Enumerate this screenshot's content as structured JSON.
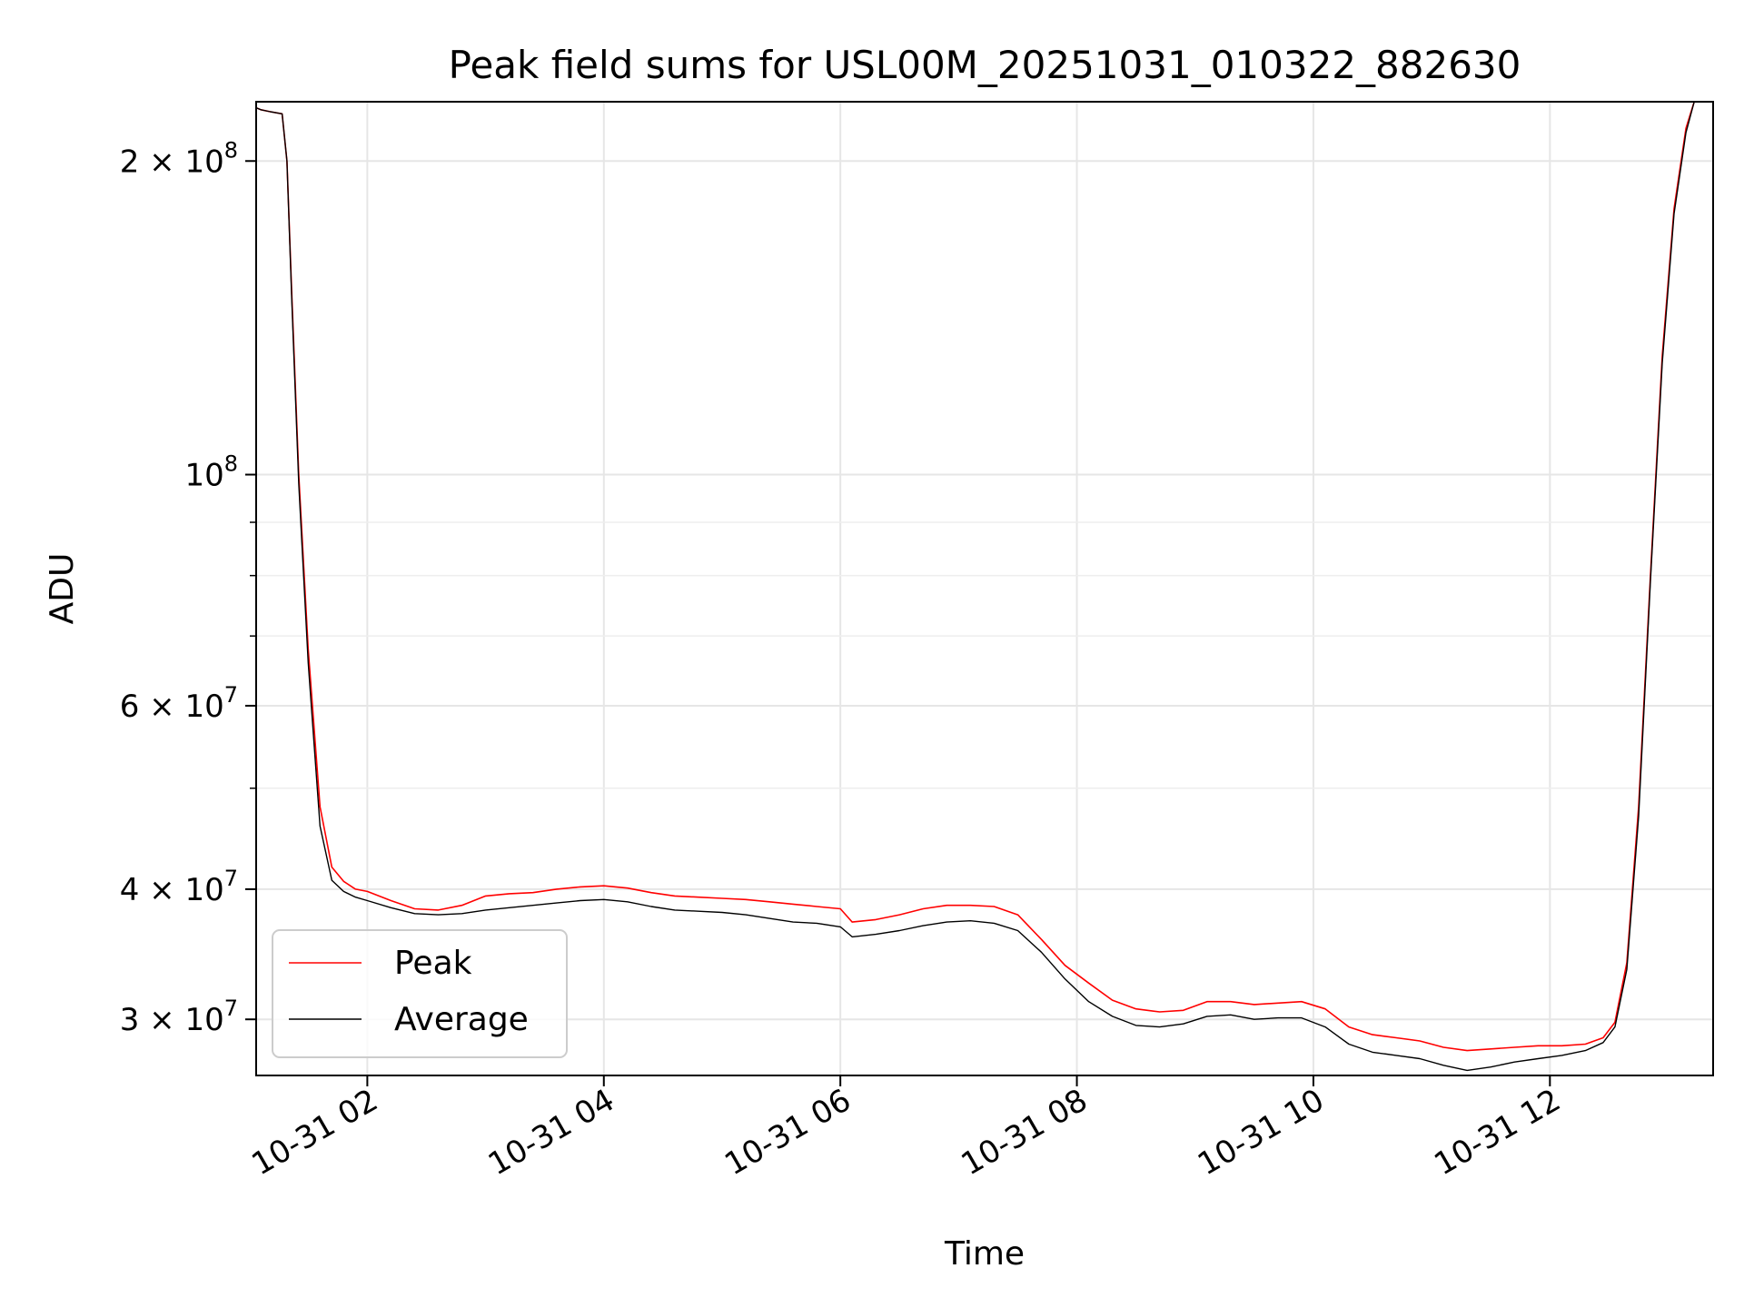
{
  "chart_data": {
    "type": "line",
    "title": "Peak field sums for USL00M_20251031_010322_882630",
    "xlabel": "Time",
    "ylabel": "ADU",
    "yscale": "log",
    "xlim": [
      1.06,
      13.38
    ],
    "ylim": [
      26500000,
      228000000
    ],
    "x_unit": "hours since 10-31 00:00",
    "x_ticks": [
      {
        "value": 2,
        "label": "10-31 02"
      },
      {
        "value": 4,
        "label": "10-31 04"
      },
      {
        "value": 6,
        "label": "10-31 06"
      },
      {
        "value": 8,
        "label": "10-31 08"
      },
      {
        "value": 10,
        "label": "10-31 10"
      },
      {
        "value": 12,
        "label": "10-31 12"
      }
    ],
    "y_ticks": [
      {
        "value": 30000000,
        "mantissa": "3",
        "base": "10",
        "exp": "7"
      },
      {
        "value": 40000000,
        "mantissa": "4",
        "base": "10",
        "exp": "7"
      },
      {
        "value": 60000000,
        "mantissa": "6",
        "base": "10",
        "exp": "7"
      },
      {
        "value": 100000000,
        "mantissa": "",
        "base": "10",
        "exp": "8"
      },
      {
        "value": 200000000,
        "mantissa": "2",
        "base": "10",
        "exp": "8"
      }
    ],
    "y_minor_ticks": [
      50000000,
      70000000,
      80000000,
      90000000
    ],
    "grid": true,
    "legend_position": "lower-left",
    "series": [
      {
        "name": "Peak",
        "color": "#ff0000",
        "x": [
          1.06,
          1.1,
          1.18,
          1.28,
          1.32,
          1.36,
          1.42,
          1.5,
          1.6,
          1.7,
          1.8,
          1.9,
          2.0,
          2.2,
          2.4,
          2.6,
          2.8,
          3.0,
          3.2,
          3.4,
          3.6,
          3.8,
          4.0,
          4.2,
          4.4,
          4.6,
          4.8,
          5.0,
          5.2,
          5.4,
          5.6,
          5.8,
          6.0,
          6.1,
          6.3,
          6.5,
          6.7,
          6.9,
          7.1,
          7.3,
          7.5,
          7.7,
          7.9,
          8.1,
          8.3,
          8.5,
          8.7,
          8.9,
          9.1,
          9.3,
          9.5,
          9.7,
          9.9,
          10.1,
          10.3,
          10.5,
          10.7,
          10.9,
          11.1,
          11.3,
          11.5,
          11.7,
          11.9,
          12.1,
          12.3,
          12.45,
          12.55,
          12.65,
          12.75,
          12.85,
          12.95,
          13.05,
          13.15,
          13.22,
          13.3,
          13.38
        ],
        "values": [
          225000000,
          224000000,
          223000000,
          222000000,
          200000000,
          150000000,
          100000000,
          68000000,
          48000000,
          42000000,
          40700000,
          40000000,
          39800000,
          39000000,
          38300000,
          38200000,
          38600000,
          39400000,
          39600000,
          39700000,
          40000000,
          40200000,
          40300000,
          40100000,
          39700000,
          39400000,
          39300000,
          39200000,
          39100000,
          38900000,
          38700000,
          38500000,
          38300000,
          37200000,
          37400000,
          37800000,
          38300000,
          38600000,
          38600000,
          38500000,
          37800000,
          35800000,
          33800000,
          32500000,
          31300000,
          30700000,
          30500000,
          30600000,
          31200000,
          31200000,
          31000000,
          31100000,
          31200000,
          30700000,
          29500000,
          29000000,
          28800000,
          28600000,
          28200000,
          28000000,
          28100000,
          28200000,
          28300000,
          28300000,
          28400000,
          28800000,
          29800000,
          34000000,
          48000000,
          80000000,
          130000000,
          180000000,
          215000000,
          228000000,
          228000000,
          228000000
        ]
      },
      {
        "name": "Average",
        "color": "#000000",
        "x": [
          1.06,
          1.1,
          1.18,
          1.28,
          1.32,
          1.36,
          1.42,
          1.5,
          1.6,
          1.7,
          1.8,
          1.9,
          2.0,
          2.2,
          2.4,
          2.6,
          2.8,
          3.0,
          3.2,
          3.4,
          3.6,
          3.8,
          4.0,
          4.2,
          4.4,
          4.6,
          4.8,
          5.0,
          5.2,
          5.4,
          5.6,
          5.8,
          6.0,
          6.1,
          6.3,
          6.5,
          6.7,
          6.9,
          7.1,
          7.3,
          7.5,
          7.7,
          7.9,
          8.1,
          8.3,
          8.5,
          8.7,
          8.9,
          9.1,
          9.3,
          9.5,
          9.7,
          9.9,
          10.1,
          10.3,
          10.5,
          10.7,
          10.9,
          11.1,
          11.3,
          11.5,
          11.7,
          11.9,
          12.1,
          12.3,
          12.45,
          12.55,
          12.65,
          12.75,
          12.85,
          12.95,
          13.05,
          13.15,
          13.22,
          13.3,
          13.38
        ],
        "values": [
          225000000,
          224000000,
          223000000,
          222000000,
          200000000,
          148000000,
          98000000,
          66000000,
          46000000,
          40800000,
          39800000,
          39300000,
          39000000,
          38400000,
          37900000,
          37800000,
          37900000,
          38200000,
          38400000,
          38600000,
          38800000,
          39000000,
          39100000,
          38900000,
          38500000,
          38200000,
          38100000,
          38000000,
          37800000,
          37500000,
          37200000,
          37100000,
          36800000,
          36000000,
          36200000,
          36500000,
          36900000,
          37200000,
          37300000,
          37100000,
          36500000,
          34800000,
          32800000,
          31200000,
          30200000,
          29600000,
          29500000,
          29700000,
          30200000,
          30300000,
          30000000,
          30100000,
          30100000,
          29500000,
          28400000,
          27900000,
          27700000,
          27500000,
          27100000,
          26800000,
          27000000,
          27300000,
          27500000,
          27700000,
          28000000,
          28500000,
          29500000,
          33500000,
          47000000,
          79000000,
          128000000,
          178000000,
          213000000,
          228000000,
          228000000,
          228000000
        ]
      }
    ]
  }
}
